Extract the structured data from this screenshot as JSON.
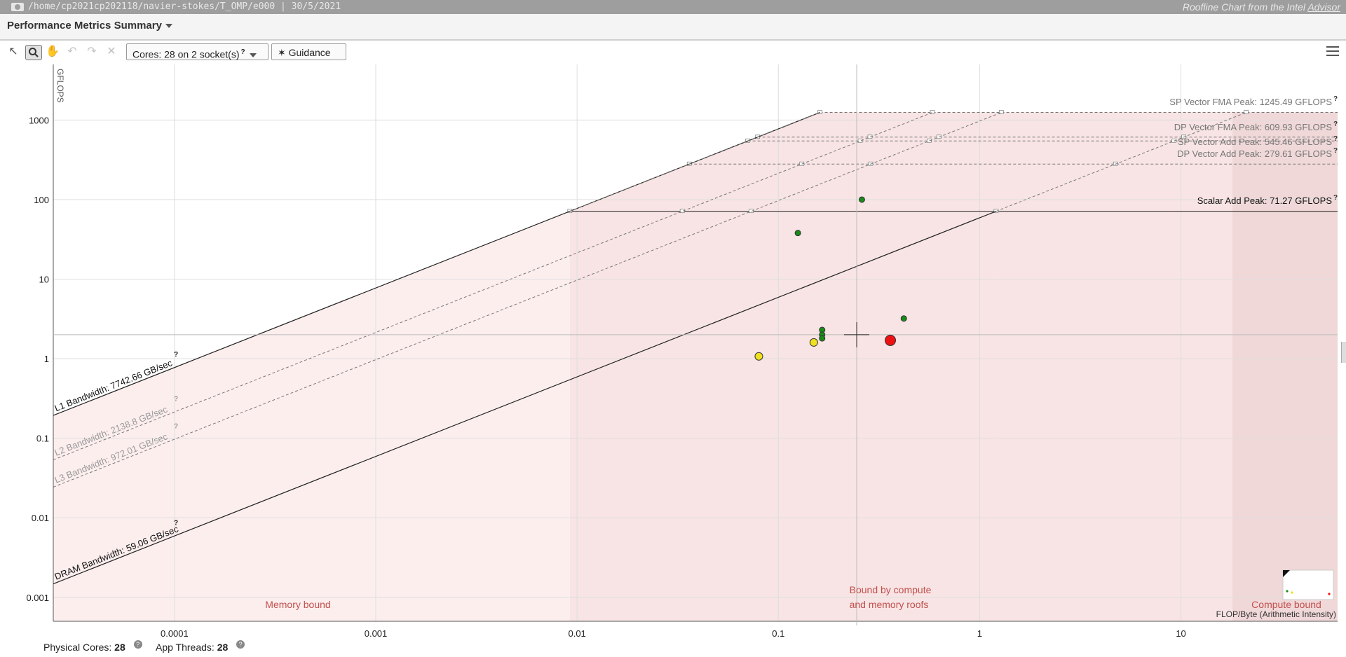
{
  "window": {
    "path": "/home/cp2021cp202118/navier-stokes/T_OMP/e000 | 30/5/2021",
    "right_prefix": "Roofline Chart from the Intel",
    "right_link": "Advisor"
  },
  "header": {
    "title": "Performance Metrics Summary"
  },
  "toolbar": {
    "icons": [
      "pointer-icon",
      "zoom-icon",
      "pan-icon",
      "undo-icon",
      "redo-icon",
      "close-icon"
    ],
    "cores_label": "Cores:",
    "cores_value": "28 on 2 socket(s)",
    "guidance_label": "Guidance",
    "menu_icon": "hamburger-icon"
  },
  "footer": {
    "physical_cores_label": "Physical Cores:",
    "physical_cores_value": "28",
    "app_threads_label": "App Threads:",
    "app_threads_value": "28"
  },
  "chart_data": {
    "type": "scatter",
    "title": "",
    "xlabel": "FLOP/Byte (Arithmetic Intensity)",
    "ylabel": "GFLOPS",
    "xscale": "log",
    "yscale": "log",
    "xlim": [
      2.5e-05,
      60
    ],
    "ylim": [
      0.0005,
      5000
    ],
    "grid": true,
    "x_ticks": [
      {
        "value": 0.0001,
        "label": "0.0001"
      },
      {
        "value": 0.001,
        "label": "0.001"
      },
      {
        "value": 0.01,
        "label": "0.01"
      },
      {
        "value": 0.1,
        "label": "0.1"
      },
      {
        "value": 1,
        "label": "1"
      },
      {
        "value": 10,
        "label": "10"
      }
    ],
    "y_ticks": [
      {
        "value": 0.001,
        "label": "0.001"
      },
      {
        "value": 0.01,
        "label": "0.01"
      },
      {
        "value": 0.1,
        "label": "0.1"
      },
      {
        "value": 1,
        "label": "1"
      },
      {
        "value": 10,
        "label": "10"
      },
      {
        "value": 100,
        "label": "100"
      },
      {
        "value": 1000,
        "label": "1000"
      }
    ],
    "compute_roofs": [
      {
        "label": "SP Vector FMA Peak: 1245.49 GFLOPS",
        "value": 1245.49,
        "style": "dashed"
      },
      {
        "label": "DP Vector FMA Peak: 609.93 GFLOPS",
        "value": 609.93,
        "style": "dashed"
      },
      {
        "label": "SP Vector Add Peak: 545.46 GFLOPS",
        "value": 545.46,
        "style": "dashed"
      },
      {
        "label": "DP Vector Add Peak: 279.61 GFLOPS",
        "value": 279.61,
        "style": "dashed"
      },
      {
        "label": "Scalar Add Peak: 71.27 GFLOPS",
        "value": 71.27,
        "style": "solid"
      }
    ],
    "bandwidth_roofs": [
      {
        "label": "L1 Bandwidth: 7742.66 GB/sec",
        "value": 7742.66,
        "style": "solid"
      },
      {
        "label": "L2 Bandwidth: 2138.8 GB/sec",
        "value": 2138.8,
        "style": "dashed"
      },
      {
        "label": "L3 Bandwidth: 972.01 GB/sec",
        "value": 972.01,
        "style": "dashed"
      },
      {
        "label": "DRAM Bandwidth: 59.06 GB/sec",
        "value": 59.06,
        "style": "solid"
      }
    ],
    "points": [
      {
        "x": 0.26,
        "y": 100,
        "color": "#1a8a1a",
        "size": "small"
      },
      {
        "x": 0.125,
        "y": 38,
        "color": "#1a8a1a",
        "size": "small"
      },
      {
        "x": 0.42,
        "y": 3.2,
        "color": "#1a8a1a",
        "size": "small"
      },
      {
        "x": 0.165,
        "y": 2.3,
        "color": "#1a8a1a",
        "size": "small"
      },
      {
        "x": 0.165,
        "y": 2.0,
        "color": "#1a8a1a",
        "size": "small"
      },
      {
        "x": 0.165,
        "y": 1.8,
        "color": "#1a8a1a",
        "size": "small"
      },
      {
        "x": 0.15,
        "y": 1.6,
        "color": "#f0e020",
        "size": "medium"
      },
      {
        "x": 0.08,
        "y": 1.07,
        "color": "#f0e020",
        "size": "medium"
      },
      {
        "x": 0.36,
        "y": 1.7,
        "color": "#ee1111",
        "size": "large"
      }
    ],
    "crosshair": {
      "x": 0.245,
      "y": 2.0
    },
    "regions": {
      "memory_bound": "Memory bound",
      "mixed_line1": "Bound by compute",
      "mixed_line2": "and memory roofs",
      "compute_bound": "Compute bound"
    },
    "colors": {
      "region_memory": "#fdeeee",
      "region_mixed": "#f8e4e4",
      "region_compute": "#f0d8d8",
      "region_label": "#c0504d"
    }
  }
}
